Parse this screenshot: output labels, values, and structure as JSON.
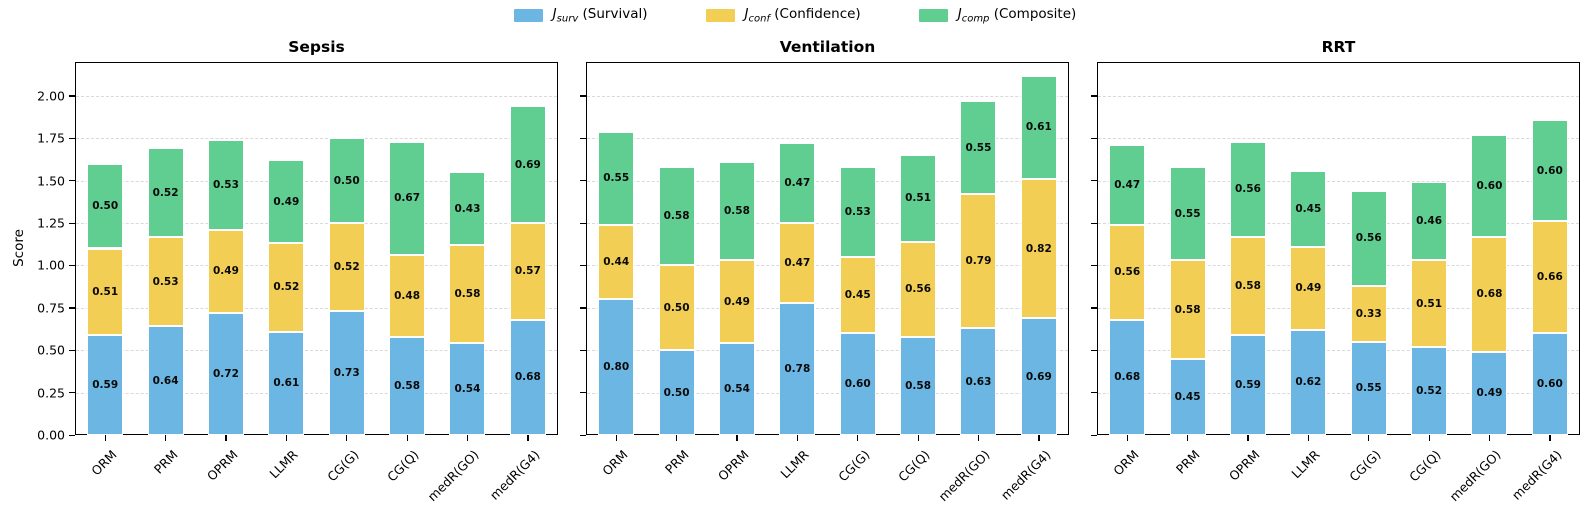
{
  "chart_data": {
    "type": "bar",
    "stacked": true,
    "title": "",
    "xlabel": "",
    "ylabel": "Score",
    "ylim": [
      0,
      2.2
    ],
    "yticks": [
      "0.00",
      "0.25",
      "0.50",
      "0.75",
      "1.00",
      "1.25",
      "1.50",
      "1.75",
      "2.00"
    ],
    "grid": "horizontal-dashed",
    "legend_position": "top-center",
    "categories": [
      "ORM",
      "PRM",
      "OPRM",
      "LLMR",
      "CG(G)",
      "CG(Q)",
      "medR(GO)",
      "medR(G4)"
    ],
    "colors": {
      "surv": "#6bb6e3",
      "conf": "#f2ce55",
      "comp": "#5fce90"
    },
    "panels": [
      {
        "title": "Sepsis",
        "series": [
          {
            "name": "J_surv (Survival)",
            "color": "#6bb6e3",
            "values": [
              0.59,
              0.64,
              0.72,
              0.61,
              0.73,
              0.58,
              0.54,
              0.68
            ]
          },
          {
            "name": "J_conf (Confidence)",
            "color": "#f2ce55",
            "values": [
              0.51,
              0.53,
              0.49,
              0.52,
              0.52,
              0.48,
              0.58,
              0.57
            ]
          },
          {
            "name": "J_comp (Composite)",
            "color": "#5fce90",
            "values": [
              0.5,
              0.52,
              0.53,
              0.49,
              0.5,
              0.67,
              0.43,
              0.69
            ]
          }
        ]
      },
      {
        "title": "Ventilation",
        "series": [
          {
            "name": "J_surv (Survival)",
            "color": "#6bb6e3",
            "values": [
              0.8,
              0.5,
              0.54,
              0.78,
              0.6,
              0.58,
              0.63,
              0.69
            ]
          },
          {
            "name": "J_conf (Confidence)",
            "color": "#f2ce55",
            "values": [
              0.44,
              0.5,
              0.49,
              0.47,
              0.45,
              0.56,
              0.79,
              0.82
            ]
          },
          {
            "name": "J_comp (Composite)",
            "color": "#5fce90",
            "values": [
              0.55,
              0.58,
              0.58,
              0.47,
              0.53,
              0.51,
              0.55,
              0.61
            ]
          }
        ]
      },
      {
        "title": "RRT",
        "series": [
          {
            "name": "J_surv (Survival)",
            "color": "#6bb6e3",
            "values": [
              0.68,
              0.45,
              0.59,
              0.62,
              0.55,
              0.52,
              0.49,
              0.6
            ]
          },
          {
            "name": "J_conf (Confidence)",
            "color": "#f2ce55",
            "values": [
              0.56,
              0.58,
              0.58,
              0.49,
              0.33,
              0.51,
              0.68,
              0.66
            ]
          },
          {
            "name": "J_comp (Composite)",
            "color": "#5fce90",
            "values": [
              0.47,
              0.55,
              0.56,
              0.45,
              0.56,
              0.46,
              0.6,
              0.6
            ]
          }
        ]
      }
    ]
  },
  "legend": {
    "items": [
      {
        "symbol": "J",
        "subscript": "surv",
        "text": "(Survival)"
      },
      {
        "symbol": "J",
        "subscript": "conf",
        "text": "(Confidence)"
      },
      {
        "symbol": "J",
        "subscript": "comp",
        "text": "(Composite)"
      }
    ]
  },
  "axis": {
    "ylabel": "Score"
  }
}
